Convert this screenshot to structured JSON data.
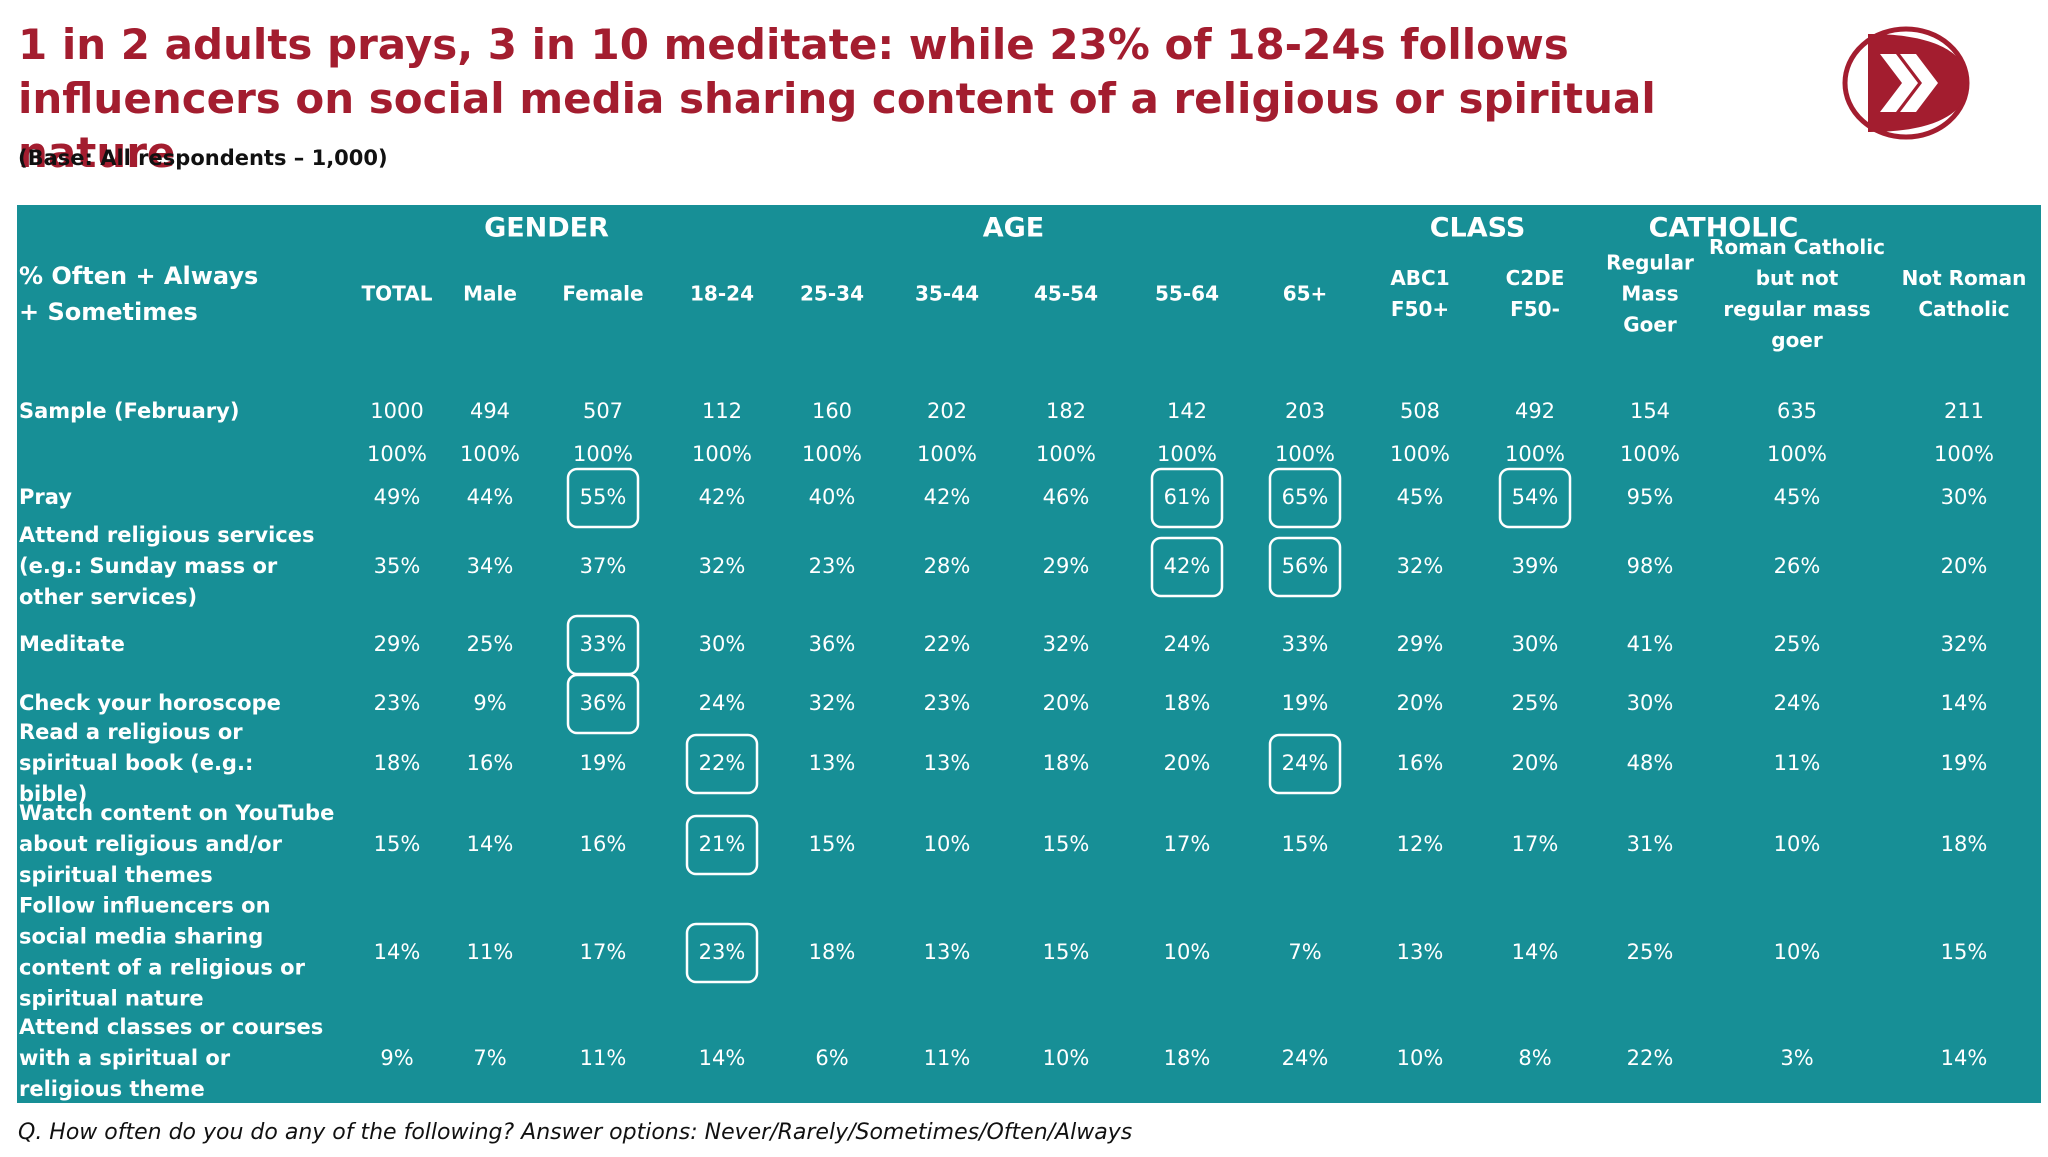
{
  "title": "1 in 2 adults prays, 3 in 10 meditate: while 23% of 18-24s follows influencers on social media sharing content of a religious or spiritual nature",
  "base_note": "(Base: All respondents – 1,000)",
  "footnote": "Q. How often do you do any of the following?  Answer options: Never/Rarely/Sometimes/Often/Always",
  "colors": {
    "title": "#a31d2f",
    "panel": "#178f96",
    "text": "#ffffff",
    "logo": "#a31d2f"
  },
  "logo": {
    "icon": "double-chevron-right-icon"
  },
  "chart_data": {
    "type": "table",
    "row_header_title": "% Often + Always + Sometimes",
    "groups": [
      {
        "label": "GENDER",
        "start": 1,
        "end": 2
      },
      {
        "label": "AGE",
        "start": 3,
        "end": 8
      },
      {
        "label": "CLASS",
        "start": 9,
        "end": 10
      },
      {
        "label": "CATHOLIC",
        "start": 11,
        "end": 12
      }
    ],
    "columns": [
      "TOTAL",
      "Male",
      "Female",
      "18-24",
      "25-34",
      "35-44",
      "45-54",
      "55-64",
      "65+",
      "ABC1 F50+",
      "C2DE F50-",
      "Regular Mass Goer",
      "Roman Catholic but not regular mass goer",
      "Not Roman Catholic"
    ],
    "sample_label": "Sample (February)",
    "sample": [
      "1000",
      "494",
      "507",
      "112",
      "160",
      "202",
      "182",
      "142",
      "203",
      "508",
      "492",
      "154",
      "635",
      "211"
    ],
    "percent_base": [
      "100%",
      "100%",
      "100%",
      "100%",
      "100%",
      "100%",
      "100%",
      "100%",
      "100%",
      "100%",
      "100%",
      "100%",
      "100%",
      "100%"
    ],
    "rows": [
      {
        "label": "Pray",
        "values": [
          49,
          44,
          55,
          42,
          40,
          42,
          46,
          61,
          65,
          45,
          54,
          95,
          45,
          30
        ],
        "highlighted": [
          2,
          7,
          8,
          10
        ]
      },
      {
        "label": "Attend religious services (e.g.: Sunday mass or other services)",
        "values": [
          35,
          34,
          37,
          32,
          23,
          28,
          29,
          42,
          56,
          32,
          39,
          98,
          26,
          20
        ],
        "highlighted": [
          7,
          8
        ]
      },
      {
        "label": "Meditate",
        "values": [
          29,
          25,
          33,
          30,
          36,
          22,
          32,
          24,
          33,
          29,
          30,
          41,
          25,
          32
        ],
        "highlighted": [
          2
        ]
      },
      {
        "label": "Check your horoscope",
        "values": [
          23,
          9,
          36,
          24,
          32,
          23,
          20,
          18,
          19,
          20,
          25,
          30,
          24,
          14
        ],
        "highlighted": [
          2
        ]
      },
      {
        "label": "Read a religious or spiritual book (e.g.: bible)",
        "values": [
          18,
          16,
          19,
          22,
          13,
          13,
          18,
          20,
          24,
          16,
          20,
          48,
          11,
          19
        ],
        "highlighted": [
          3,
          8
        ]
      },
      {
        "label": "Watch content on YouTube about religious and/or spiritual themes",
        "values": [
          15,
          14,
          16,
          21,
          15,
          10,
          15,
          17,
          15,
          12,
          17,
          31,
          10,
          18
        ],
        "highlighted": [
          3
        ]
      },
      {
        "label": "Follow influencers on social media sharing content of a religious or spiritual nature",
        "values": [
          14,
          11,
          17,
          23,
          18,
          13,
          15,
          10,
          7,
          13,
          14,
          25,
          10,
          15
        ],
        "highlighted": [
          3
        ]
      },
      {
        "label": "Attend classes or courses with a spiritual or religious theme",
        "values": [
          9,
          7,
          11,
          14,
          6,
          11,
          10,
          18,
          24,
          10,
          8,
          22,
          3,
          14
        ],
        "highlighted": []
      }
    ]
  }
}
